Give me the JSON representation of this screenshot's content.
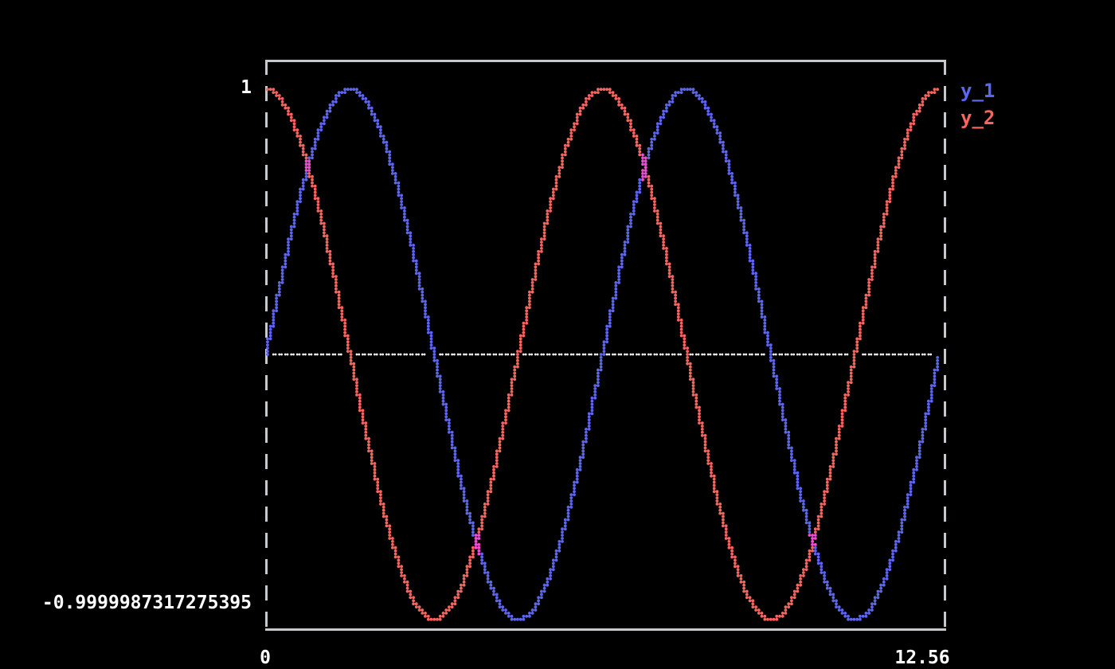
{
  "window": {
    "background": "#000000"
  },
  "axes": {
    "y_max_label": "1",
    "y_min_label": "-0.9999987317275395",
    "x_min_label": "0",
    "x_max_label": "12.56",
    "label_color": "#ffffff"
  },
  "legend": {
    "position": "outside-top-right",
    "entries": [
      {
        "label": "y_1",
        "color": "#5d66ee"
      },
      {
        "label": "y_2",
        "color": "#f7655f"
      }
    ]
  },
  "chart_data": {
    "type": "scatter",
    "title": "",
    "xlabel": "",
    "ylabel": "",
    "x_range": [
      0,
      12.56
    ],
    "ylim": [
      -0.9999987317275395,
      1
    ],
    "x_tick_labels": [
      "0",
      "12.56"
    ],
    "y_tick_labels": [
      "1",
      "-0.9999987317275395"
    ],
    "n_points": 200,
    "grid": false,
    "marker_style": "braille-dot",
    "series": [
      {
        "name": "y_1",
        "fn": "sin",
        "amplitude": 1,
        "phase": 0,
        "color": "#5d66ee",
        "keypoints_x": [
          0,
          1.57,
          3.14,
          4.71,
          6.28,
          7.85,
          9.42,
          11.0,
          12.56
        ],
        "keypoints_y": [
          0,
          1,
          0,
          -1,
          0,
          1,
          0,
          -1,
          0
        ]
      },
      {
        "name": "y_2",
        "fn": "cos",
        "amplitude": 1,
        "phase": 0,
        "color": "#f7655f",
        "keypoints_x": [
          0,
          1.57,
          3.14,
          4.71,
          6.28,
          7.85,
          9.42,
          11.0,
          12.56
        ],
        "keypoints_y": [
          1,
          0,
          -1,
          0,
          1,
          0,
          -1,
          0,
          1
        ]
      },
      {
        "name": "zero-line",
        "fn": "zero",
        "amplitude": 0,
        "phase": 0,
        "color": "#ffffff",
        "keypoints_x": [
          0,
          12.56
        ],
        "keypoints_y": [
          0,
          0
        ]
      }
    ],
    "overlap_color": "#ee4ed2",
    "border_color": "#c5c9cd",
    "background": "#000000"
  }
}
